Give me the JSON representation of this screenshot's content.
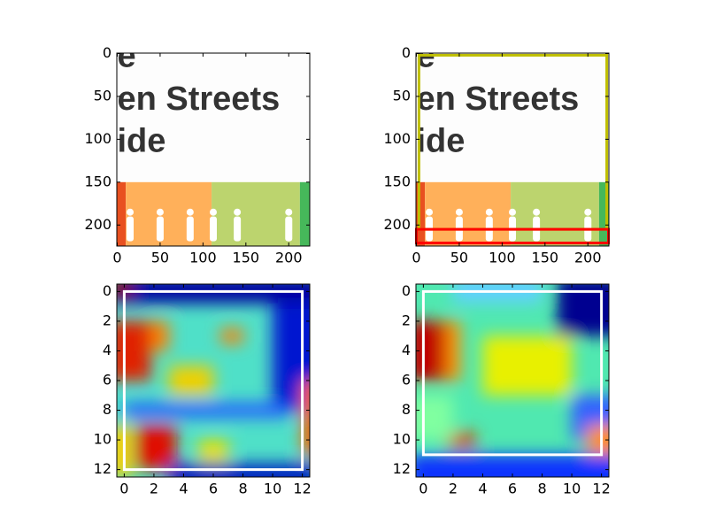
{
  "chart_data": [
    {
      "type": "image",
      "xlim": [
        -0.5,
        224.5
      ],
      "ylim": [
        224.5,
        -0.5
      ],
      "xticks": [
        0,
        50,
        100,
        150,
        200
      ],
      "yticks": [
        0,
        50,
        100,
        150,
        200
      ],
      "image_text": [
        "e",
        "en Streets",
        "ide"
      ]
    },
    {
      "type": "image",
      "xlim": [
        -0.5,
        224.5
      ],
      "ylim": [
        224.5,
        -0.5
      ],
      "xticks": [
        0,
        50,
        100,
        150,
        200
      ],
      "yticks": [
        0,
        50,
        100,
        150,
        200
      ],
      "image_text": [
        "e",
        "en Streets",
        "ide"
      ],
      "boxes": [
        {
          "color": "#bfbf00",
          "x0": 3,
          "y0": 2,
          "x1": 222,
          "y1": 205
        },
        {
          "color": "#ff0000",
          "x0": 0,
          "y0": 205,
          "x1": 224,
          "y1": 221
        }
      ]
    },
    {
      "type": "heatmap",
      "xlim": [
        -0.5,
        12.5
      ],
      "ylim": [
        12.5,
        -0.5
      ],
      "xticks": [
        0,
        2,
        4,
        6,
        8,
        10,
        12
      ],
      "yticks": [
        0,
        2,
        4,
        6,
        8,
        10,
        12
      ],
      "boxes": [
        {
          "color": "#ffffff",
          "x0": 0,
          "y0": 0,
          "x1": 12,
          "y1": 12
        }
      ]
    },
    {
      "type": "heatmap",
      "xlim": [
        -0.5,
        12.5
      ],
      "ylim": [
        12.5,
        -0.5
      ],
      "xticks": [
        0,
        2,
        4,
        6,
        8,
        10,
        12
      ],
      "yticks": [
        0,
        2,
        4,
        6,
        8,
        10,
        12
      ],
      "boxes": [
        {
          "color": "#ffffff",
          "x0": 0,
          "y0": 0,
          "x1": 12,
          "y1": 11
        }
      ]
    }
  ]
}
